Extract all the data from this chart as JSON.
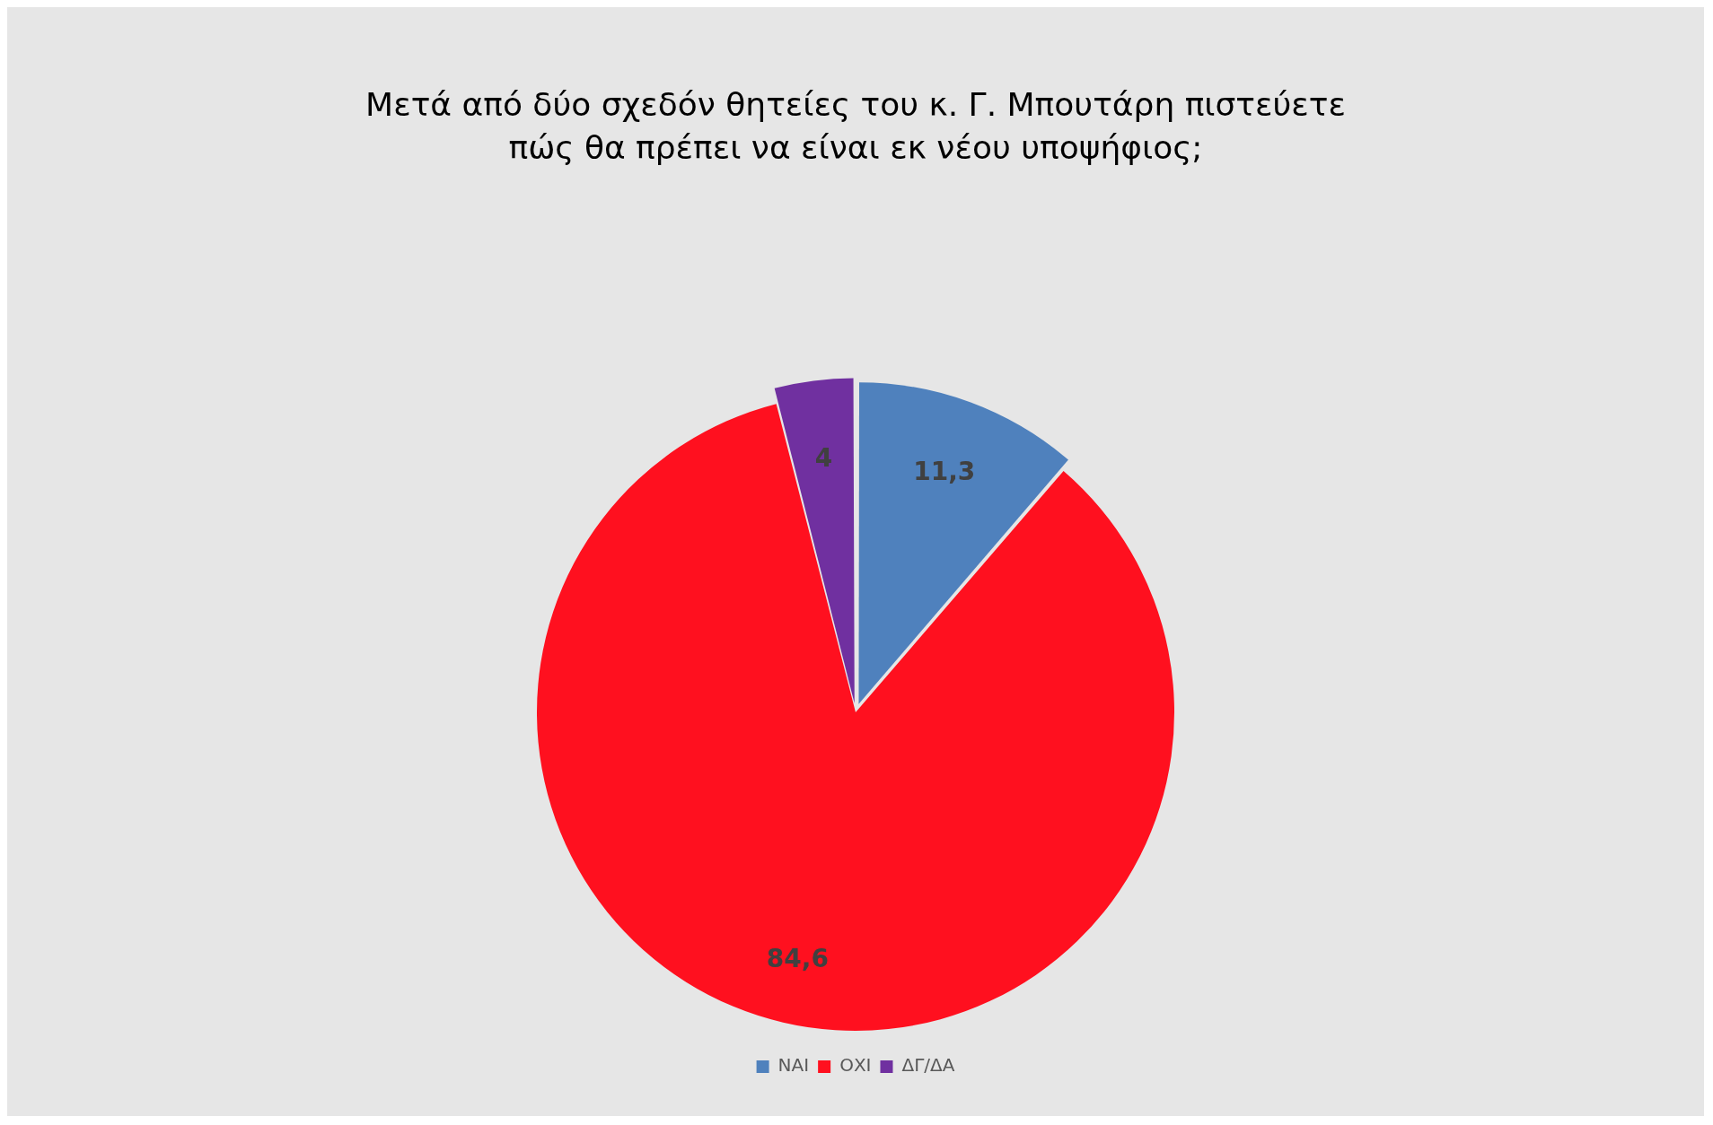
{
  "chart_data": {
    "type": "pie",
    "title": "Μετά από δύο σχεδόν θητείες του κ. Γ. Μπουτάρη πιστεύετε πώς θα πρέπει να είναι εκ νέου υποψήφιος;",
    "categories": [
      "ΝΑΙ",
      "ΟΧΙ",
      "ΔΓ/ΔΑ"
    ],
    "values": [
      11.3,
      84.6,
      4
    ],
    "colors": [
      "#4f81bd",
      "#ff101f",
      "#7030a0"
    ],
    "value_labels": [
      "11,3",
      "84,6",
      "4"
    ],
    "legend": "bottom"
  }
}
